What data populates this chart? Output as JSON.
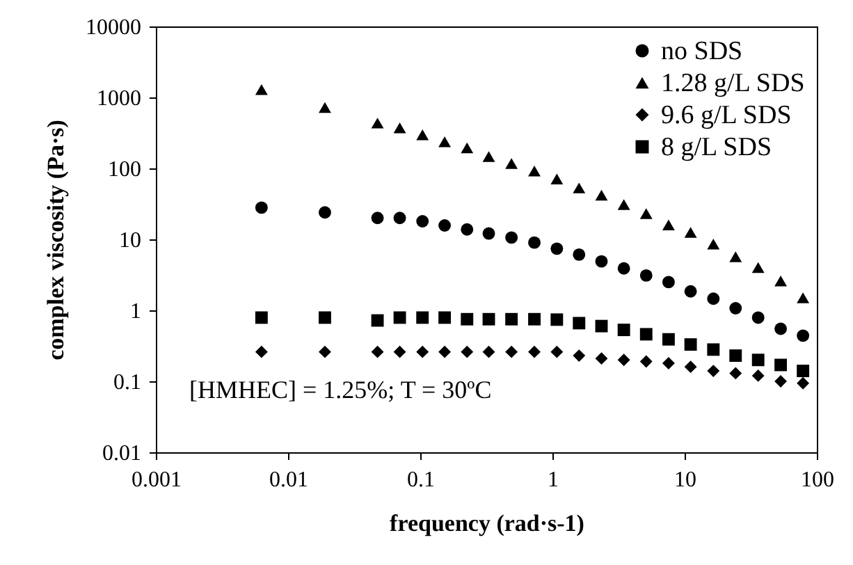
{
  "chart_data": {
    "type": "scatter",
    "xlabel": "frequency (rad·s-1)",
    "ylabel": "complex viscosity (Pa·s)",
    "x": [
      0.0063,
      0.019,
      0.0475,
      0.07,
      0.104,
      0.153,
      0.226,
      0.33,
      0.49,
      0.73,
      1.08,
      1.59,
      2.35,
      3.47,
      5.12,
      7.56,
      11.1,
      16.5,
      24.3,
      36,
      53.3,
      78.6
    ],
    "series": [
      {
        "name": "no SDS",
        "color": "#000000",
        "marker": "circle",
        "values": [
          28,
          24,
          20,
          20,
          18,
          15.7,
          13.8,
          12.1,
          10.6,
          9.0,
          7.4,
          6.1,
          4.9,
          3.9,
          3.1,
          2.5,
          1.85,
          1.46,
          1.07,
          0.79,
          0.55,
          0.44
        ]
      },
      {
        "name": "1.28 g/L SDS",
        "color": "#000000",
        "marker": "triangle",
        "values": [
          1290,
          720,
          435,
          373,
          297,
          237,
          195,
          147,
          117,
          92,
          71,
          53,
          42,
          31,
          23,
          16,
          12.5,
          8.6,
          5.7,
          4.0,
          2.6,
          1.5
        ]
      },
      {
        "name": "9.6 g/L SDS",
        "color": "#000000",
        "marker": "diamond",
        "values": [
          0.26,
          0.26,
          0.26,
          0.26,
          0.26,
          0.26,
          0.26,
          0.26,
          0.26,
          0.26,
          0.26,
          0.23,
          0.21,
          0.2,
          0.19,
          0.18,
          0.16,
          0.14,
          0.13,
          0.12,
          0.1,
          0.094
        ]
      },
      {
        "name": "8 g/L SDS",
        "color": "#000000",
        "marker": "square",
        "values": [
          0.79,
          0.79,
          0.72,
          0.79,
          0.79,
          0.79,
          0.75,
          0.75,
          0.75,
          0.75,
          0.74,
          0.66,
          0.6,
          0.53,
          0.46,
          0.39,
          0.33,
          0.28,
          0.23,
          0.2,
          0.17,
          0.14
        ]
      }
    ],
    "xlim": [
      0.001,
      100
    ],
    "xticks": [
      0.001,
      0.01,
      0.1,
      1,
      10,
      100
    ],
    "ylim": [
      0.01,
      10000
    ],
    "yticks": [
      0.01,
      0.1,
      1,
      10,
      100,
      1000,
      10000
    ],
    "log": "xy",
    "grid": false,
    "legend": "top right",
    "annotations": [
      "[HMHEC] = 1.25%; T = 30ºC"
    ]
  }
}
